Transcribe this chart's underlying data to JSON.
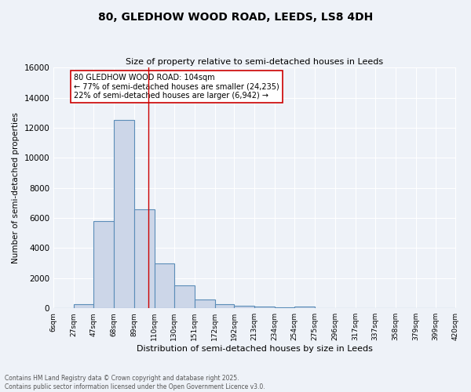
{
  "title": "80, GLEDHOW WOOD ROAD, LEEDS, LS8 4DH",
  "subtitle": "Size of property relative to semi-detached houses in Leeds",
  "xlabel": "Distribution of semi-detached houses by size in Leeds",
  "ylabel": "Number of semi-detached properties",
  "bins": [
    6,
    27,
    47,
    68,
    89,
    110,
    130,
    151,
    172,
    192,
    213,
    234,
    254,
    275,
    296,
    317,
    337,
    358,
    379,
    399,
    420
  ],
  "bin_labels": [
    "6sqm",
    "27sqm",
    "47sqm",
    "68sqm",
    "89sqm",
    "110sqm",
    "130sqm",
    "151sqm",
    "172sqm",
    "192sqm",
    "213sqm",
    "234sqm",
    "254sqm",
    "275sqm",
    "296sqm",
    "317sqm",
    "337sqm",
    "358sqm",
    "379sqm",
    "399sqm",
    "420sqm"
  ],
  "counts": [
    0,
    250,
    5800,
    12500,
    6600,
    3000,
    1500,
    600,
    250,
    150,
    100,
    50,
    100,
    0,
    0,
    0,
    0,
    0,
    0,
    0
  ],
  "bar_color": "#ccd6e8",
  "bar_edge_color": "#5b8db8",
  "property_size": 104,
  "property_label": "80 GLEDHOW WOOD ROAD: 104sqm",
  "pct_smaller": 77,
  "pct_smaller_count": 24235,
  "pct_larger": 22,
  "pct_larger_count": 6942,
  "red_line_color": "#cc0000",
  "annotation_box_color": "#cc0000",
  "background_color": "#eef2f8",
  "grid_color": "#ffffff",
  "ylim": [
    0,
    16000
  ],
  "yticks": [
    0,
    2000,
    4000,
    6000,
    8000,
    10000,
    12000,
    14000,
    16000
  ],
  "footer1": "Contains HM Land Registry data © Crown copyright and database right 2025.",
  "footer2": "Contains public sector information licensed under the Open Government Licence v3.0."
}
